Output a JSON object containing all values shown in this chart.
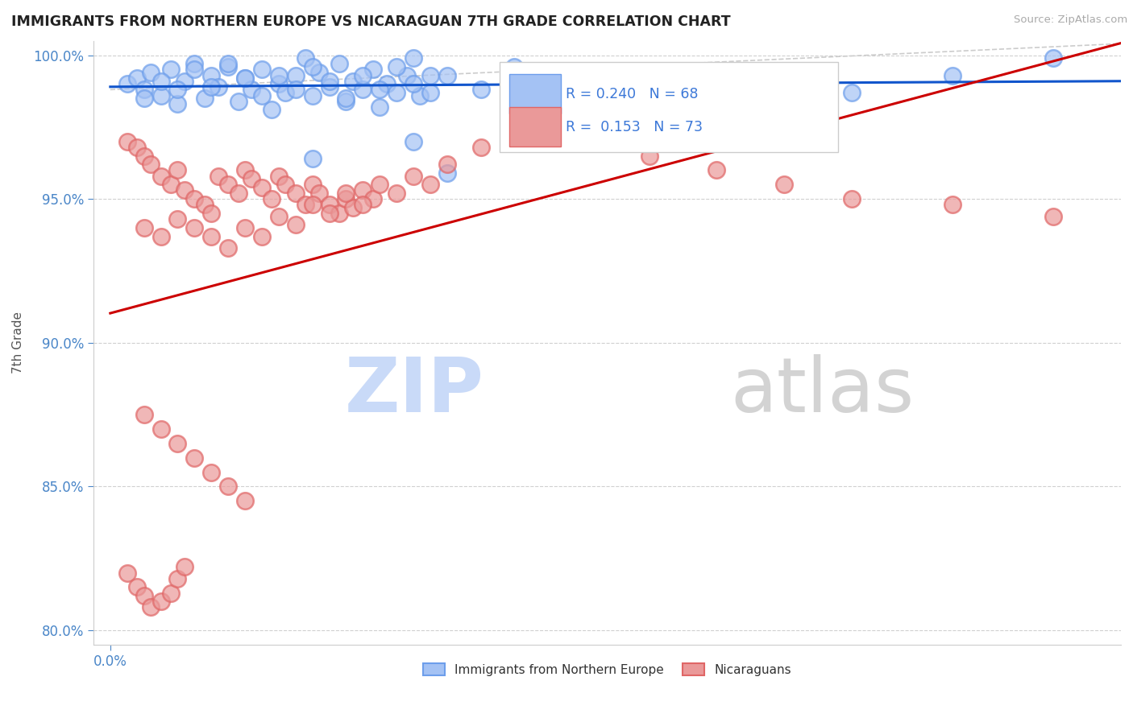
{
  "title": "IMMIGRANTS FROM NORTHERN EUROPE VS NICARAGUAN 7TH GRADE CORRELATION CHART",
  "source": "Source: ZipAtlas.com",
  "ylabel": "7th Grade",
  "xlim_pct": [
    0.0,
    0.003
  ],
  "ylim_pct": [
    0.795,
    1.005
  ],
  "xticks_pct": [
    0.0
  ],
  "yticks_pct": [
    0.8,
    0.85,
    0.9,
    0.95,
    1.0
  ],
  "blue_R": 0.24,
  "blue_N": 68,
  "pink_R": 0.153,
  "pink_N": 73,
  "blue_color": "#a4c2f4",
  "blue_edge_color": "#6d9eeb",
  "pink_color": "#ea9999",
  "pink_edge_color": "#e06666",
  "blue_line_color": "#1155cc",
  "pink_line_color": "#cc0000",
  "ref_line_color": "#cccccc",
  "tick_color": "#4a86c8",
  "watermark_zip_color": "#c9daf8",
  "watermark_atlas_color": "#b7b7b7",
  "legend_entries": [
    "Immigrants from Northern Europe",
    "Nicaraguans"
  ],
  "blue_scatter_x": [
    5e-05,
    8e-05,
    0.0001,
    0.00012,
    0.00015,
    0.00018,
    0.0002,
    0.00022,
    0.00025,
    0.00028,
    0.0003,
    0.00032,
    0.00035,
    0.00038,
    0.0004,
    0.00042,
    0.00045,
    0.00048,
    0.0005,
    0.00052,
    0.00055,
    0.00058,
    0.0006,
    0.00062,
    0.00065,
    0.00068,
    0.0007,
    0.00072,
    0.00075,
    0.00078,
    0.0008,
    0.00082,
    0.00085,
    0.00088,
    0.0009,
    0.00092,
    0.00095,
    0.0001,
    0.00015,
    0.0002,
    0.00025,
    0.0003,
    0.00035,
    0.0004,
    0.00045,
    0.0005,
    0.00055,
    0.0006,
    0.00065,
    0.0007,
    0.00075,
    0.0008,
    0.00085,
    0.0009,
    0.00095,
    0.001,
    0.0011,
    0.0012,
    0.0014,
    0.0016,
    0.0018,
    0.002,
    0.0022,
    0.0025,
    0.0028,
    0.0006,
    0.0009,
    0.001
  ],
  "blue_scatter_y": [
    0.99,
    0.992,
    0.988,
    0.994,
    0.986,
    0.995,
    0.983,
    0.991,
    0.997,
    0.985,
    0.993,
    0.989,
    0.996,
    0.984,
    0.992,
    0.988,
    0.995,
    0.981,
    0.99,
    0.987,
    0.993,
    0.999,
    0.986,
    0.994,
    0.989,
    0.997,
    0.984,
    0.991,
    0.988,
    0.995,
    0.982,
    0.99,
    0.987,
    0.993,
    0.999,
    0.986,
    0.993,
    0.985,
    0.991,
    0.988,
    0.995,
    0.989,
    0.997,
    0.992,
    0.986,
    0.993,
    0.988,
    0.996,
    0.991,
    0.985,
    0.993,
    0.988,
    0.996,
    0.99,
    0.987,
    0.993,
    0.988,
    0.996,
    0.991,
    0.988,
    0.994,
    0.99,
    0.987,
    0.993,
    0.999,
    0.964,
    0.97,
    0.959
  ],
  "pink_scatter_x": [
    5e-05,
    8e-05,
    0.0001,
    0.00012,
    0.00015,
    0.00018,
    0.0002,
    0.00022,
    0.00025,
    0.00028,
    0.0003,
    0.00032,
    0.00035,
    0.00038,
    0.0004,
    0.00042,
    0.00045,
    0.00048,
    0.0005,
    0.00052,
    0.00055,
    0.00058,
    0.0006,
    0.00062,
    0.00065,
    0.00068,
    0.0007,
    0.00072,
    0.00075,
    0.00078,
    0.0001,
    0.00015,
    0.0002,
    0.00025,
    0.0003,
    0.00035,
    0.0004,
    0.00045,
    0.0005,
    0.00055,
    0.0006,
    0.00065,
    0.0007,
    0.00075,
    0.0008,
    0.00085,
    0.0009,
    0.00095,
    0.001,
    0.0011,
    0.0012,
    0.0014,
    0.0016,
    0.0018,
    0.002,
    0.0022,
    0.0025,
    0.0028,
    0.0001,
    0.00015,
    0.0002,
    0.00025,
    0.0003,
    0.00035,
    0.0004,
    5e-05,
    8e-05,
    0.0001,
    0.00012,
    0.00015,
    0.00018,
    0.0002,
    0.00022
  ],
  "pink_scatter_y": [
    0.97,
    0.968,
    0.965,
    0.962,
    0.958,
    0.955,
    0.96,
    0.953,
    0.95,
    0.948,
    0.945,
    0.958,
    0.955,
    0.952,
    0.96,
    0.957,
    0.954,
    0.95,
    0.958,
    0.955,
    0.952,
    0.948,
    0.955,
    0.952,
    0.948,
    0.945,
    0.95,
    0.947,
    0.953,
    0.95,
    0.94,
    0.937,
    0.943,
    0.94,
    0.937,
    0.933,
    0.94,
    0.937,
    0.944,
    0.941,
    0.948,
    0.945,
    0.952,
    0.948,
    0.955,
    0.952,
    0.958,
    0.955,
    0.962,
    0.968,
    0.975,
    0.97,
    0.965,
    0.96,
    0.955,
    0.95,
    0.948,
    0.944,
    0.875,
    0.87,
    0.865,
    0.86,
    0.855,
    0.85,
    0.845,
    0.82,
    0.815,
    0.812,
    0.808,
    0.81,
    0.813,
    0.818,
    0.822
  ]
}
